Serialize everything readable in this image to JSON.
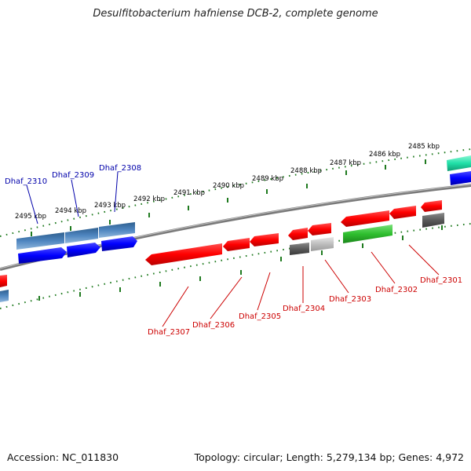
{
  "title": "Desulfitobacterium hafniense DCB-2, complete genome",
  "footer": {
    "accession": "Accession: NC_011830",
    "summary": "Topology: circular; Length: 5,279,134 bp; Genes: 4,972"
  },
  "colors": {
    "backbone": "#7a7a7a",
    "tick": "#1f7a1f",
    "label_forward": "#0000aa",
    "label_reverse": "#cc0000"
  },
  "ruler": {
    "ticks": [
      "2485 kbp",
      "2486 kbp",
      "2487 kbp",
      "2488 kbp",
      "2489 kbp",
      "2490 kbp",
      "2491 kbp",
      "2492 kbp",
      "2493 kbp",
      "2494 kbp",
      "2495 kbp"
    ]
  },
  "genes": {
    "forward": [
      "Dhaf_2310",
      "Dhaf_2309",
      "Dhaf_2308"
    ],
    "reverse": [
      "Dhaf_2307",
      "Dhaf_2306",
      "Dhaf_2305",
      "Dhaf_2304",
      "Dhaf_2303",
      "Dhaf_2302",
      "Dhaf_2301"
    ]
  }
}
